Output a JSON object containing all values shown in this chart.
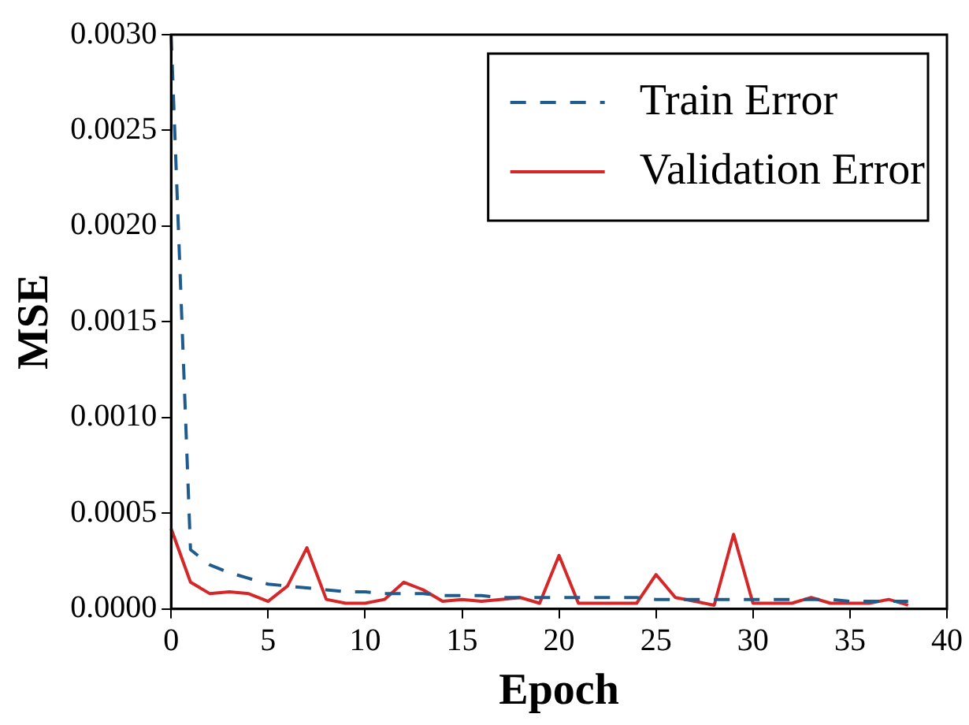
{
  "chart_data": {
    "type": "line",
    "xlabel": "Epoch",
    "ylabel": "MSE",
    "x": [
      0,
      1,
      2,
      3,
      4,
      5,
      6,
      7,
      8,
      9,
      10,
      11,
      12,
      13,
      14,
      15,
      16,
      17,
      18,
      19,
      20,
      21,
      22,
      23,
      24,
      25,
      26,
      27,
      28,
      29,
      30,
      31,
      32,
      33,
      34,
      35,
      36,
      37,
      38
    ],
    "series": [
      {
        "name": "Train Error",
        "color": "#1f5b8c",
        "line_style": "dashed",
        "values": [
          0.003,
          0.00031,
          0.00023,
          0.00019,
          0.00016,
          0.00013,
          0.00012,
          0.00011,
          0.0001,
          9e-05,
          9e-05,
          8e-05,
          8e-05,
          8e-05,
          7e-05,
          7e-05,
          7e-05,
          6e-05,
          6e-05,
          6e-05,
          6e-05,
          6e-05,
          6e-05,
          6e-05,
          6e-05,
          5e-05,
          5e-05,
          5e-05,
          5e-05,
          5e-05,
          5e-05,
          5e-05,
          5e-05,
          5e-05,
          5e-05,
          4e-05,
          4e-05,
          4e-05,
          4e-05
        ]
      },
      {
        "name": "Validation Error",
        "color": "#d62728",
        "line_style": "solid",
        "values": [
          0.00042,
          0.00014,
          8e-05,
          9e-05,
          8e-05,
          4e-05,
          0.00012,
          0.00032,
          5e-05,
          3e-05,
          3e-05,
          5e-05,
          0.00014,
          0.0001,
          4e-05,
          5e-05,
          4e-05,
          5e-05,
          6e-05,
          3e-05,
          0.00028,
          3e-05,
          3e-05,
          3e-05,
          3e-05,
          0.00018,
          6e-05,
          4e-05,
          2e-05,
          0.00039,
          3e-05,
          3e-05,
          3e-05,
          6e-05,
          3e-05,
          3e-05,
          3e-05,
          5e-05,
          2e-05
        ]
      }
    ],
    "xlim": [
      0,
      40
    ],
    "xticks": [
      0,
      5,
      10,
      15,
      20,
      25,
      30,
      35,
      40
    ],
    "ylim": [
      0,
      0.003
    ],
    "yticks": [
      {
        "value": 0,
        "label": "0.0000"
      },
      {
        "value": 0.0005,
        "label": "0.0005"
      },
      {
        "value": 0.001,
        "label": "0.0010"
      },
      {
        "value": 0.0015,
        "label": "0.0015"
      },
      {
        "value": 0.002,
        "label": "0.0020"
      },
      {
        "value": 0.0025,
        "label": "0.0025"
      },
      {
        "value": 0.003,
        "label": "0.0030"
      }
    ],
    "grid": false,
    "legend": "top right",
    "marker": "none"
  }
}
